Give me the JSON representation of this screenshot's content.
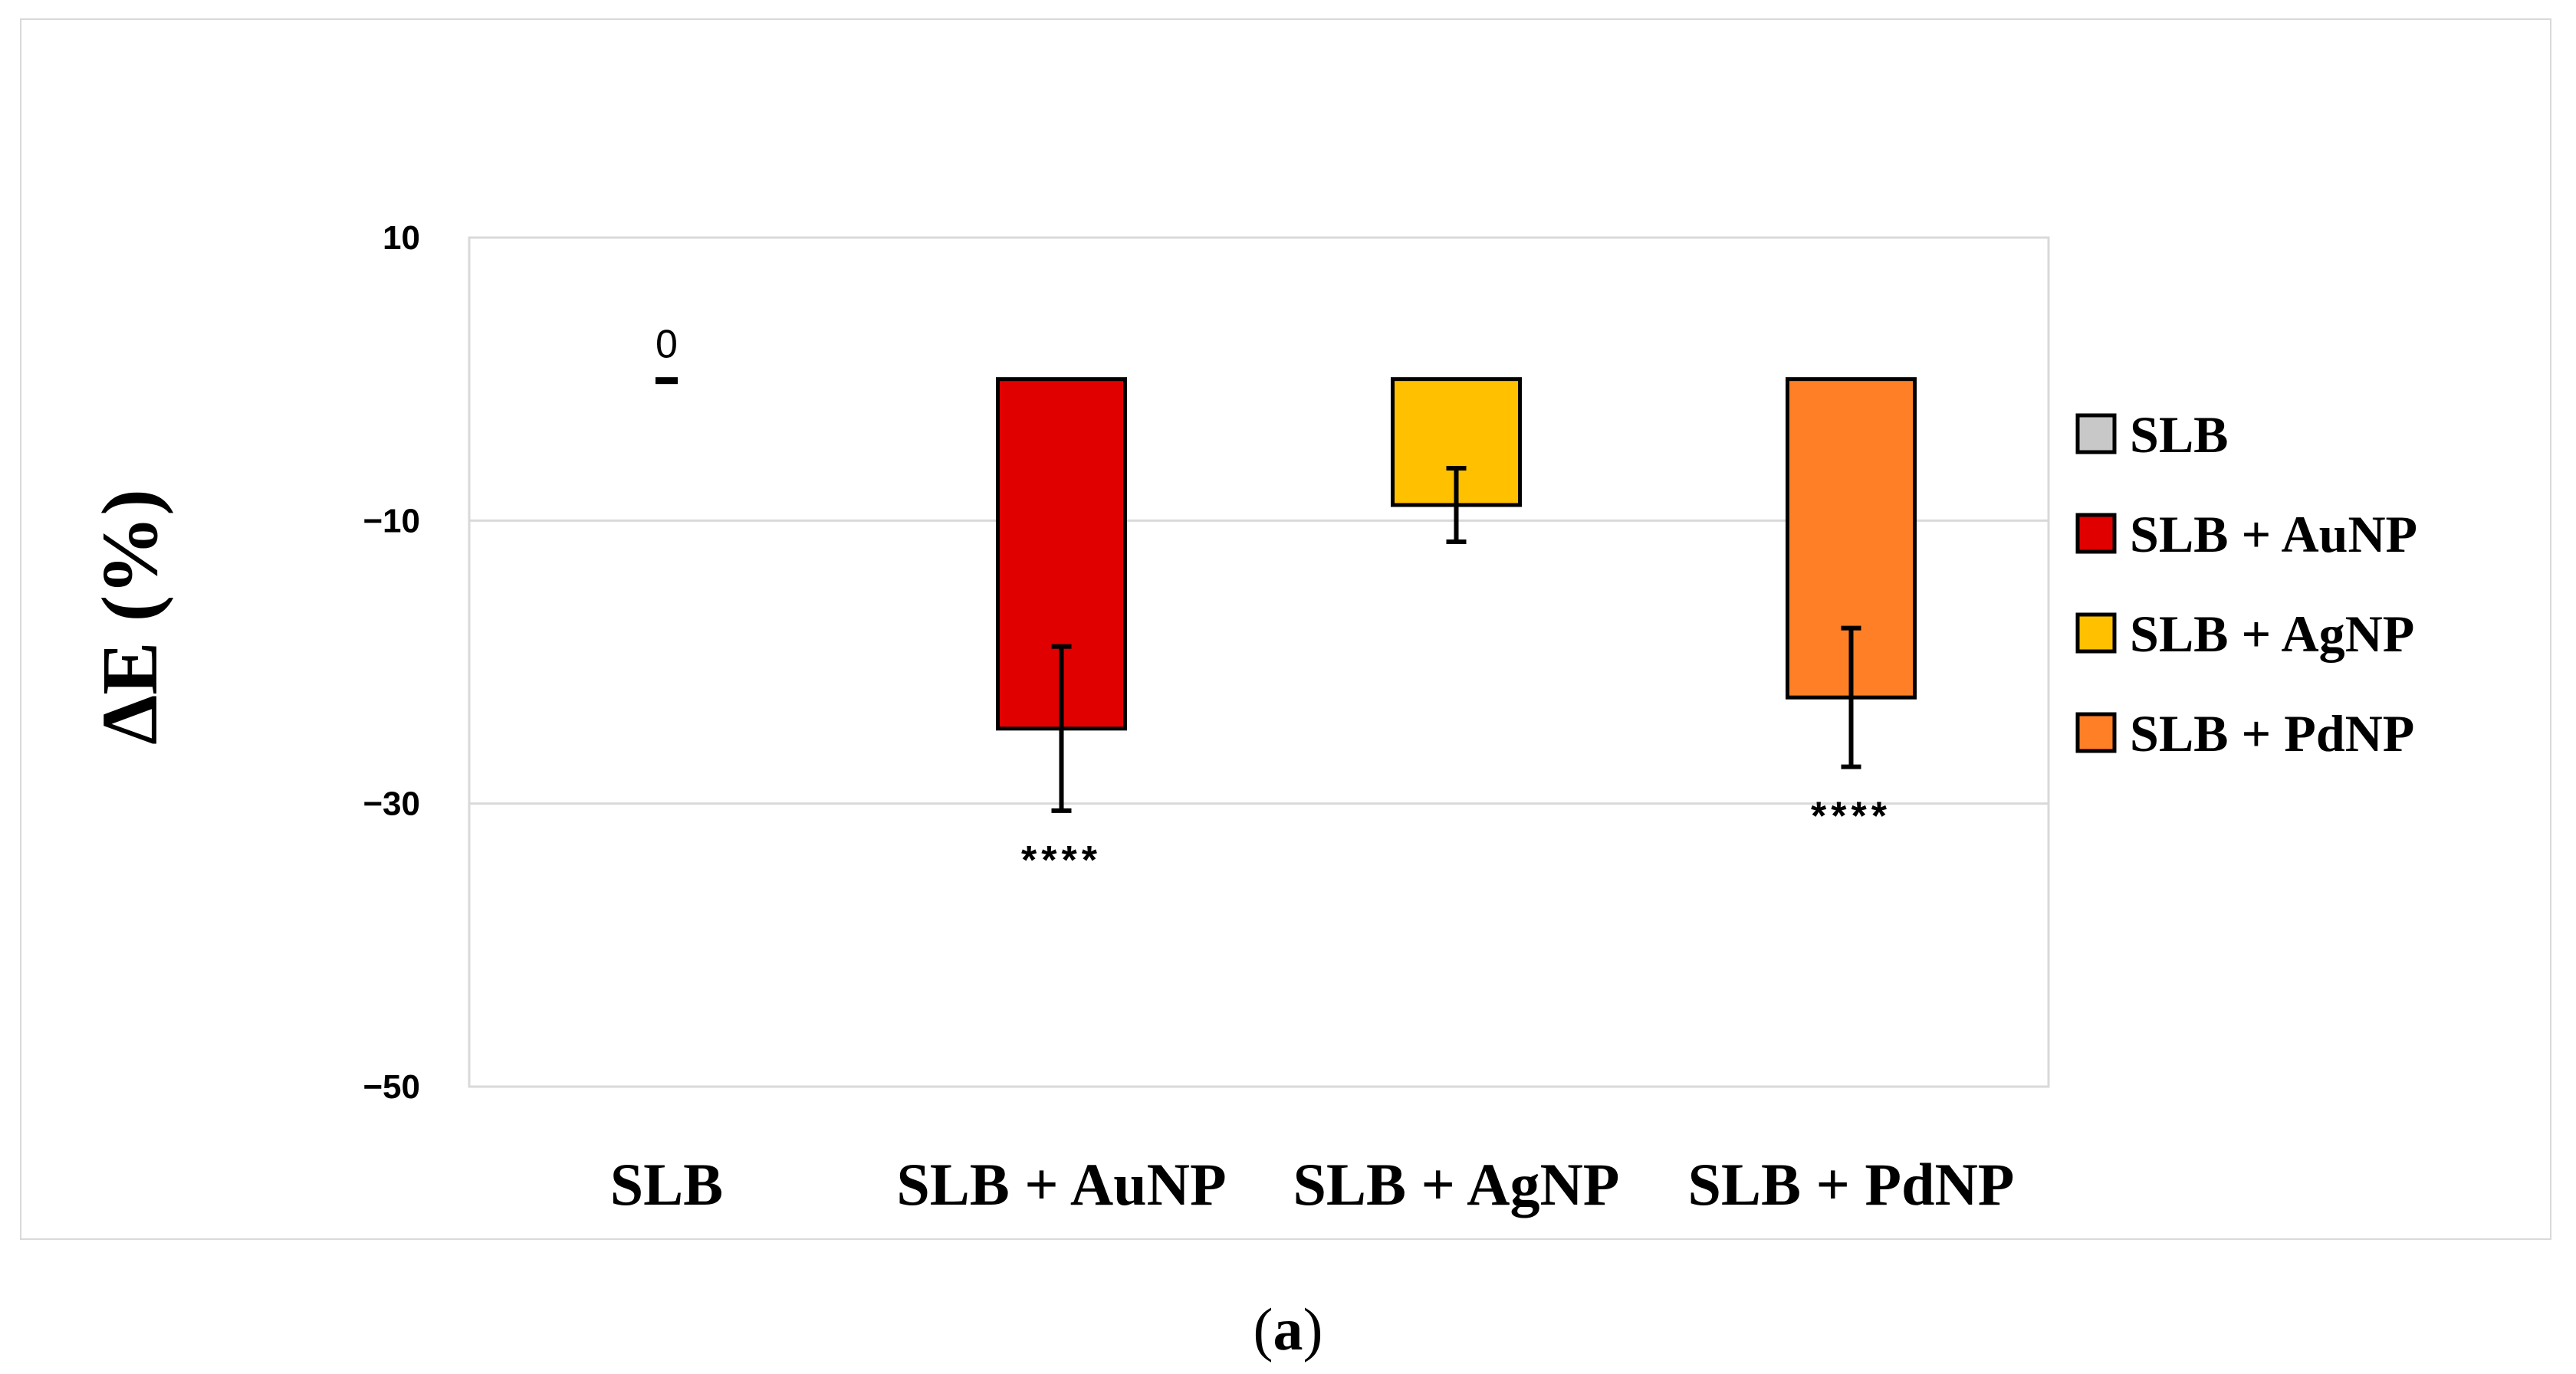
{
  "chart_data": {
    "type": "bar",
    "title": "",
    "xlabel": "",
    "ylabel": "ΔE (%)",
    "ylim": [
      -50,
      10
    ],
    "yticks": [
      10,
      -10,
      -30,
      -50
    ],
    "ytick_labels": [
      "10",
      "−10",
      "−30",
      "−50"
    ],
    "grid": true,
    "legend_position": "right",
    "categories": [
      "SLB",
      "SLB + AuNP",
      "SLB + AgNP",
      "SLB + PdNP"
    ],
    "values": [
      0,
      -24.7,
      -8.9,
      -22.5
    ],
    "errors": [
      0,
      5.8,
      2.6,
      4.9
    ],
    "colors": [
      "#c8c8c8",
      "#e00000",
      "#ffc000",
      "#ff7f27"
    ],
    "data_labels": [
      "0",
      "",
      "",
      ""
    ],
    "significance": [
      "",
      "****",
      "",
      "****"
    ],
    "legend": [
      "SLB",
      "SLB + AuNP",
      "SLB + AgNP",
      "SLB + PdNP"
    ]
  },
  "caption": {
    "open": "(",
    "letter": "a",
    "close": ")"
  }
}
